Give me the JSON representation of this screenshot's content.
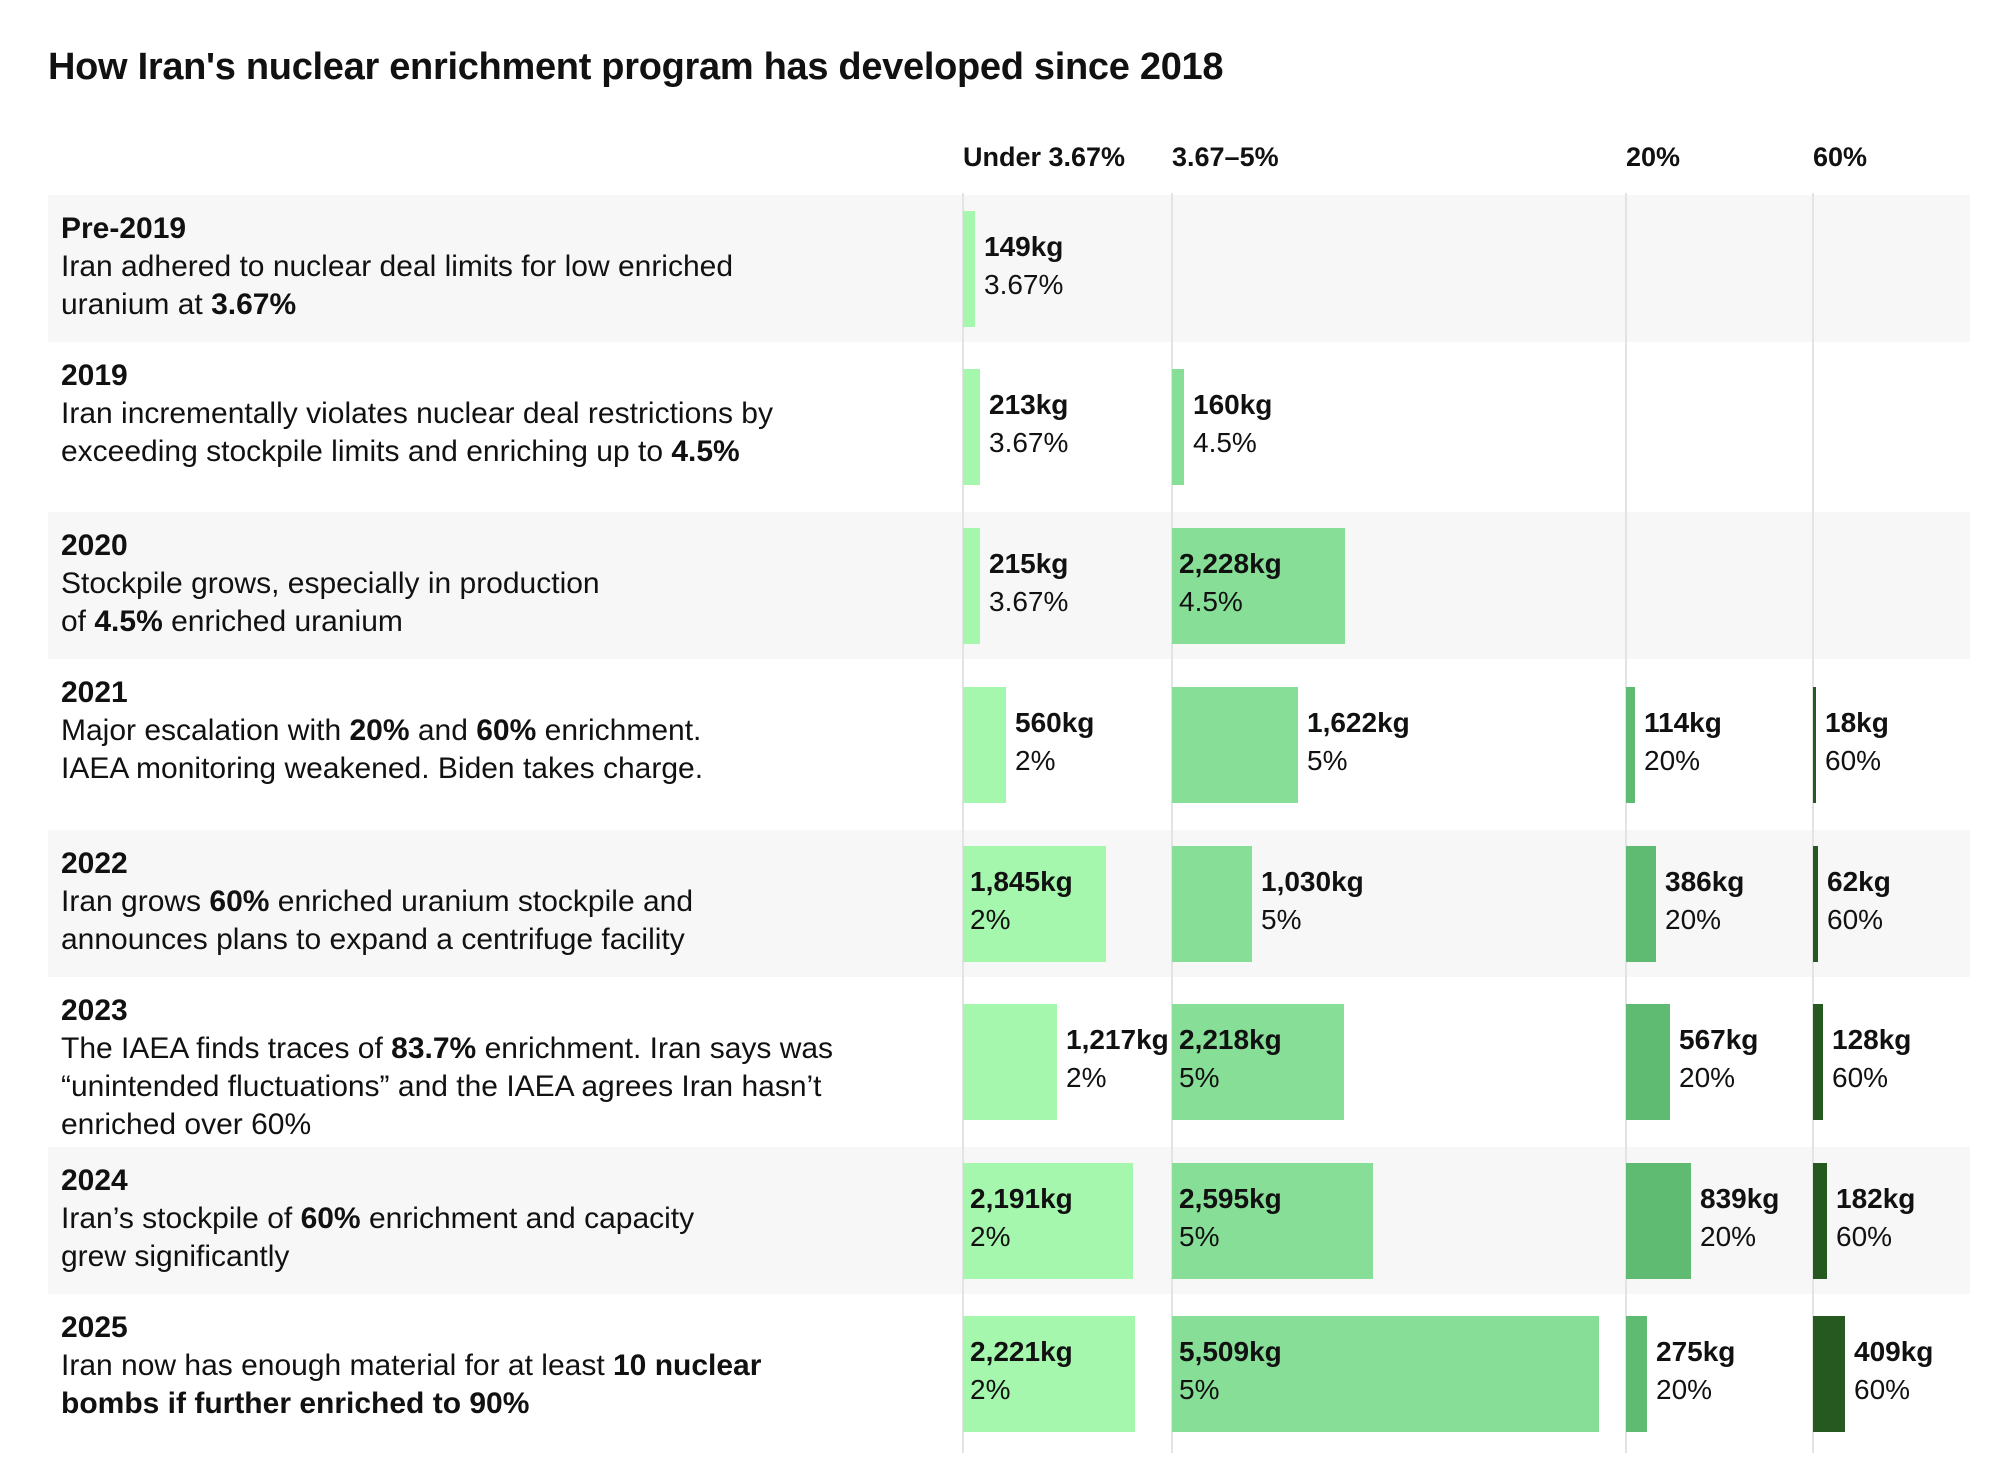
{
  "title": "How Iran's nuclear enrichment program has developed since 2018",
  "colors": {
    "under_3_67": "#a6f7ae",
    "range_3_67_5": "#86de97",
    "pct_20": "#5fba72",
    "pct_60": "#26591f",
    "row_shade": "#f7f7f7",
    "gridline": "#e3e3e3"
  },
  "chart_data": {
    "type": "bar",
    "title": "How Iran's nuclear enrichment program has developed since 2018",
    "columns": [
      "Under 3.67%",
      "3.67–5%",
      "20%",
      "60%"
    ],
    "column_keys": [
      "under",
      "mid",
      "p20",
      "p60"
    ],
    "unit": "kg",
    "rows": [
      {
        "year": "Pre-2019",
        "desc": [
          {
            "t": "Iran adhered to nuclear deal limits for low enriched"
          },
          {
            "t": "uranium at "
          },
          {
            "t": "3.67%",
            "b": true
          }
        ],
        "desc_lines": [
          [
            0
          ],
          [
            1,
            2
          ]
        ],
        "bars": {
          "under": {
            "kg": 149,
            "label": "149kg",
            "pct": "3.67%"
          },
          "mid": null,
          "p20": null,
          "p60": null
        }
      },
      {
        "year": "2019",
        "desc": [
          {
            "t": "Iran incrementally violates nuclear deal restrictions by"
          },
          {
            "t": "exceeding stockpile limits and enriching up to "
          },
          {
            "t": "4.5%",
            "b": true
          }
        ],
        "desc_lines": [
          [
            0
          ],
          [
            1,
            2
          ]
        ],
        "bars": {
          "under": {
            "kg": 213,
            "label": "213kg",
            "pct": "3.67%"
          },
          "mid": {
            "kg": 160,
            "label": "160kg",
            "pct": "4.5%"
          },
          "p20": null,
          "p60": null
        }
      },
      {
        "year": "2020",
        "desc": [
          {
            "t": "Stockpile grows, especially in production"
          },
          {
            "t": "of "
          },
          {
            "t": "4.5%",
            "b": true
          },
          {
            "t": " enriched uranium"
          }
        ],
        "desc_lines": [
          [
            0
          ],
          [
            1,
            2,
            3
          ]
        ],
        "bars": {
          "under": {
            "kg": 215,
            "label": "215kg",
            "pct": "3.67%"
          },
          "mid": {
            "kg": 2228,
            "label": "2,228kg",
            "pct": "4.5%"
          },
          "p20": null,
          "p60": null
        }
      },
      {
        "year": "2021",
        "desc": [
          {
            "t": "Major escalation with "
          },
          {
            "t": "20%",
            "b": true
          },
          {
            "t": " and "
          },
          {
            "t": "60%",
            "b": true
          },
          {
            "t": " enrichment."
          },
          {
            "t": "IAEA monitoring weakened. Biden takes charge."
          }
        ],
        "desc_lines": [
          [
            0,
            1,
            2,
            3,
            4
          ],
          [
            5
          ]
        ],
        "bars": {
          "under": {
            "kg": 560,
            "label": "560kg",
            "pct": "2%"
          },
          "mid": {
            "kg": 1622,
            "label": "1,622kg",
            "pct": "5%"
          },
          "p20": {
            "kg": 114,
            "label": "114kg",
            "pct": "20%"
          },
          "p60": {
            "kg": 18,
            "label": "18kg",
            "pct": "60%"
          }
        }
      },
      {
        "year": "2022",
        "desc": [
          {
            "t": "Iran grows "
          },
          {
            "t": "60%",
            "b": true
          },
          {
            "t": " enriched uranium stockpile and"
          },
          {
            "t": "announces plans to expand a centrifuge facility"
          }
        ],
        "desc_lines": [
          [
            0,
            1,
            2
          ],
          [
            3
          ]
        ],
        "bars": {
          "under": {
            "kg": 1845,
            "label": "1,845kg",
            "pct": "2%"
          },
          "mid": {
            "kg": 1030,
            "label": "1,030kg",
            "pct": "5%"
          },
          "p20": {
            "kg": 386,
            "label": "386kg",
            "pct": "20%"
          },
          "p60": {
            "kg": 62,
            "label": "62kg",
            "pct": "60%"
          }
        }
      },
      {
        "year": "2023",
        "desc": [
          {
            "t": "The IAEA finds traces of "
          },
          {
            "t": "83.7%",
            "b": true
          },
          {
            "t": " enrichment. Iran says was"
          },
          {
            "t": "“unintended fluctuations” and the IAEA agrees Iran hasn’t"
          },
          {
            "t": "enriched over 60%"
          }
        ],
        "desc_lines": [
          [
            0,
            1,
            2
          ],
          [
            3
          ],
          [
            4
          ]
        ],
        "bars": {
          "under": {
            "kg": 1217,
            "label": "1,217kg",
            "pct": "2%"
          },
          "mid": {
            "kg": 2218,
            "label": "2,218kg",
            "pct": "5%"
          },
          "p20": {
            "kg": 567,
            "label": "567kg",
            "pct": "20%"
          },
          "p60": {
            "kg": 128,
            "label": "128kg",
            "pct": "60%"
          }
        }
      },
      {
        "year": "2024",
        "desc": [
          {
            "t": "Iran’s stockpile of "
          },
          {
            "t": "60%",
            "b": true
          },
          {
            "t": " enrichment and capacity"
          },
          {
            "t": "grew significantly"
          }
        ],
        "desc_lines": [
          [
            0,
            1,
            2
          ],
          [
            3
          ]
        ],
        "bars": {
          "under": {
            "kg": 2191,
            "label": "2,191kg",
            "pct": "2%"
          },
          "mid": {
            "kg": 2595,
            "label": "2,595kg",
            "pct": "5%"
          },
          "p20": {
            "kg": 839,
            "label": "839kg",
            "pct": "20%"
          },
          "p60": {
            "kg": 182,
            "label": "182kg",
            "pct": "60%"
          }
        }
      },
      {
        "year": "2025",
        "desc": [
          {
            "t": "Iran now has enough material for at least "
          },
          {
            "t": "10 nuclear",
            "b": true
          },
          {
            "t": "bombs if further enriched to 90%",
            "b": true
          }
        ],
        "desc_lines": [
          [
            0,
            1
          ],
          [
            2
          ]
        ],
        "bars": {
          "under": {
            "kg": 2221,
            "label": "2,221kg",
            "pct": "2%"
          },
          "mid": {
            "kg": 5509,
            "label": "5,509kg",
            "pct": "5%"
          },
          "p20": {
            "kg": 275,
            "label": "275kg",
            "pct": "20%"
          },
          "p60": {
            "kg": 409,
            "label": "409kg",
            "pct": "60%"
          }
        }
      }
    ]
  }
}
